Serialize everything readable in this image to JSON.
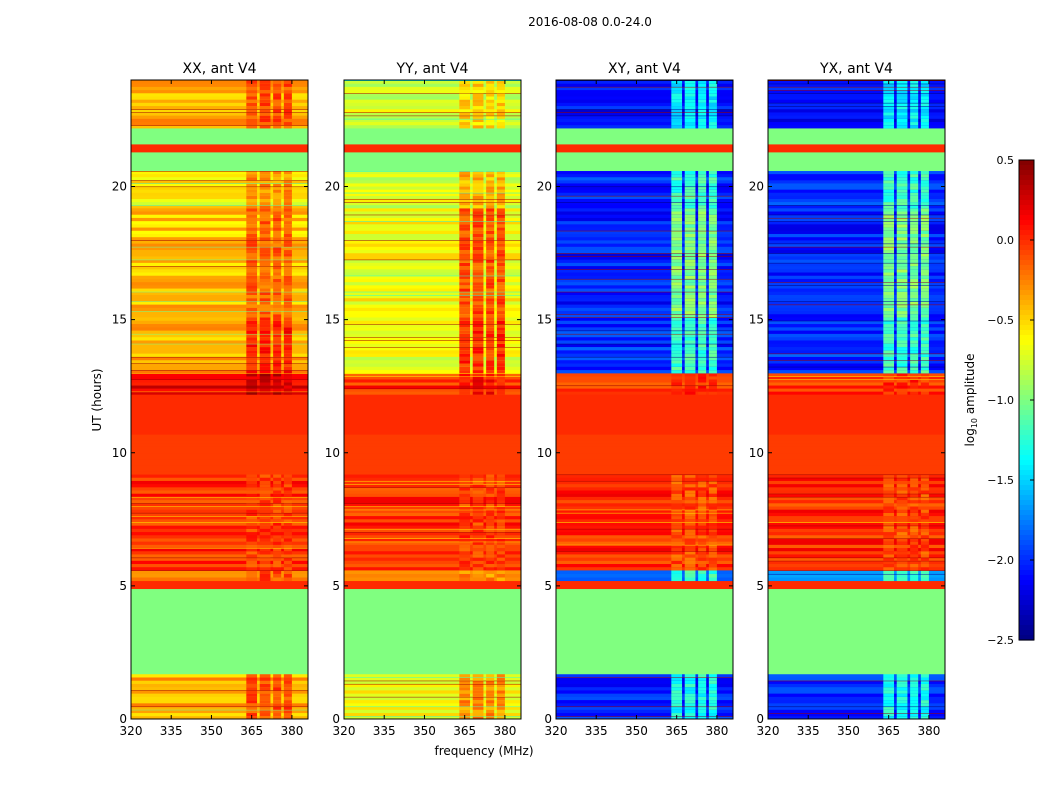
{
  "chart_data": {
    "type": "heatmap",
    "title": "2016-08-08 0.0-24.0",
    "xlabel": "frequency (MHz)",
    "ylabel": "UT (hours)",
    "xlim": [
      320,
      386
    ],
    "ylim": [
      0,
      24
    ],
    "xticks": [
      320,
      335,
      350,
      365,
      380
    ],
    "yticks": [
      0,
      5,
      10,
      15,
      20
    ],
    "colorbar": {
      "label_main": "log",
      "label_sub": "10",
      "label_rest": " amplitude",
      "range": [
        -2.5,
        0.5
      ],
      "ticks": [
        "0.5",
        "0.0",
        "−0.5",
        "−1.0",
        "−1.5",
        "−2.0",
        "−2.5"
      ],
      "tick_values": [
        0.5,
        0.0,
        -0.5,
        -1.0,
        -1.5,
        -2.0,
        -2.5
      ],
      "colormap": "jet"
    },
    "stripe_freqs": [
      [
        363,
        367
      ],
      [
        368,
        372
      ],
      [
        373,
        376
      ],
      [
        377,
        380
      ]
    ],
    "panels": [
      {
        "title": "XX, ant V4",
        "bands": [
          [
            0,
            1.7,
            -0.4,
            -0.1
          ],
          [
            1.7,
            4.9,
            -1.0,
            null
          ],
          [
            4.9,
            5.2,
            0.0,
            null
          ],
          [
            5.2,
            5.6,
            -0.3,
            -0.1
          ],
          [
            5.6,
            9.2,
            0.0,
            -0.05
          ],
          [
            9.2,
            10.7,
            -0.05,
            null
          ],
          [
            10.7,
            12.2,
            0.0,
            null
          ],
          [
            12.2,
            13.0,
            0.15,
            0.3
          ],
          [
            13.0,
            15.1,
            -0.4,
            0.05
          ],
          [
            15.1,
            19.2,
            -0.45,
            -0.15
          ],
          [
            19.2,
            20.6,
            -0.6,
            -0.3
          ],
          [
            20.6,
            21.3,
            -1.0,
            null
          ],
          [
            21.3,
            21.6,
            0.0,
            null
          ],
          [
            21.6,
            22.2,
            -1.0,
            null
          ],
          [
            22.2,
            24,
            -0.4,
            -0.1
          ]
        ]
      },
      {
        "title": "YY, ant V4",
        "bands": [
          [
            0,
            1.7,
            -0.6,
            -0.3
          ],
          [
            1.7,
            4.9,
            -1.0,
            null
          ],
          [
            4.9,
            5.2,
            0.0,
            null
          ],
          [
            5.2,
            5.6,
            -0.4,
            -0.3
          ],
          [
            5.6,
            9.2,
            0.0,
            -0.05
          ],
          [
            9.2,
            10.7,
            -0.05,
            null
          ],
          [
            10.7,
            12.2,
            0.0,
            null
          ],
          [
            12.2,
            13.0,
            0.0,
            0.1
          ],
          [
            13.0,
            15.1,
            -0.7,
            0.0
          ],
          [
            15.1,
            19.2,
            -0.65,
            -0.1
          ],
          [
            19.2,
            20.6,
            -0.75,
            -0.4
          ],
          [
            20.6,
            21.3,
            -1.0,
            null
          ],
          [
            21.3,
            21.6,
            0.0,
            null
          ],
          [
            21.6,
            22.2,
            -1.0,
            null
          ],
          [
            22.2,
            24,
            -0.75,
            -0.5
          ]
        ]
      },
      {
        "title": "XY, ant V4",
        "bands": [
          [
            0,
            1.7,
            -2.0,
            -1.3
          ],
          [
            1.7,
            4.9,
            -1.0,
            null
          ],
          [
            4.9,
            5.2,
            0.0,
            null
          ],
          [
            5.2,
            5.6,
            -1.8,
            -1.2
          ],
          [
            5.6,
            9.2,
            0.0,
            -0.1
          ],
          [
            9.2,
            10.7,
            -0.05,
            null
          ],
          [
            10.7,
            12.2,
            0.0,
            null
          ],
          [
            12.2,
            13.0,
            0.0,
            0.0
          ],
          [
            13.0,
            15.1,
            -2.0,
            -1.2
          ],
          [
            15.1,
            19.2,
            -2.05,
            -1.0
          ],
          [
            19.2,
            20.6,
            -2.0,
            -1.2
          ],
          [
            20.6,
            21.3,
            -1.0,
            null
          ],
          [
            21.3,
            21.6,
            0.0,
            null
          ],
          [
            21.6,
            22.2,
            -1.0,
            null
          ],
          [
            22.2,
            24,
            -2.1,
            -1.4
          ]
        ]
      },
      {
        "title": "YX, ant V4",
        "bands": [
          [
            0,
            1.7,
            -2.0,
            -1.3
          ],
          [
            1.7,
            4.9,
            -1.0,
            null
          ],
          [
            4.9,
            5.2,
            0.0,
            null
          ],
          [
            5.2,
            5.6,
            -1.8,
            -1.2
          ],
          [
            5.6,
            9.2,
            0.0,
            -0.1
          ],
          [
            9.2,
            10.7,
            -0.05,
            null
          ],
          [
            10.7,
            12.2,
            0.0,
            null
          ],
          [
            12.2,
            13.0,
            0.0,
            0.0
          ],
          [
            13.0,
            15.1,
            -2.0,
            -1.2
          ],
          [
            15.1,
            19.2,
            -2.05,
            -1.0
          ],
          [
            19.2,
            20.6,
            -2.0,
            -1.2
          ],
          [
            20.6,
            21.3,
            -1.0,
            null
          ],
          [
            21.3,
            21.6,
            0.0,
            null
          ],
          [
            21.6,
            22.2,
            -1.0,
            null
          ],
          [
            22.2,
            24,
            -2.1,
            -1.4
          ]
        ]
      }
    ]
  }
}
